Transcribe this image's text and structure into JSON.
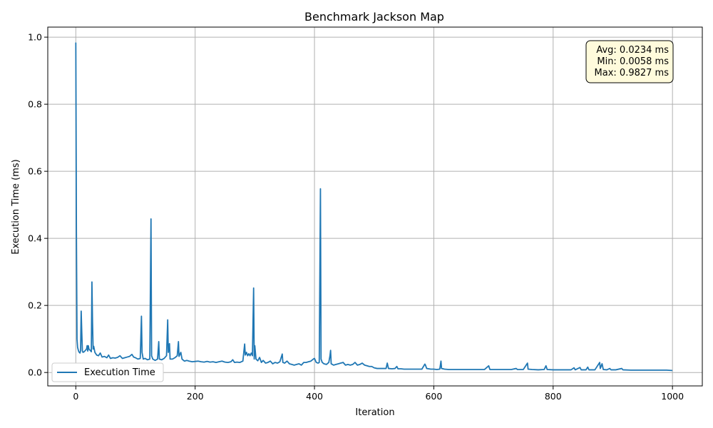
{
  "chart_data": {
    "type": "line",
    "title": "Benchmark Jackson Map",
    "xlabel": "Iteration",
    "ylabel": "Execution Time (ms)",
    "xlim": [
      -47,
      1050
    ],
    "ylim": [
      -0.04,
      1.03
    ],
    "xticks": [
      0,
      200,
      400,
      600,
      800,
      1000
    ],
    "yticks": [
      0.0,
      0.2,
      0.4,
      0.6,
      0.8,
      1.0
    ],
    "xtick_labels": [
      "0",
      "200",
      "400",
      "600",
      "800",
      "1000"
    ],
    "ytick_labels": [
      "0.0",
      "0.2",
      "0.4",
      "0.6",
      "0.8",
      "1.0"
    ],
    "grid": true,
    "legend_position": "bottom-left",
    "line_color": "#1f77b4",
    "series": [
      {
        "name": "Execution Time",
        "points": [
          [
            0,
            0.9827
          ],
          [
            1,
            0.42
          ],
          [
            2,
            0.1
          ],
          [
            3,
            0.075
          ],
          [
            4,
            0.068
          ],
          [
            5,
            0.062
          ],
          [
            6,
            0.06
          ],
          [
            7,
            0.058
          ],
          [
            8,
            0.065
          ],
          [
            9,
            0.183
          ],
          [
            10,
            0.12
          ],
          [
            11,
            0.065
          ],
          [
            12,
            0.06
          ],
          [
            14,
            0.062
          ],
          [
            16,
            0.066
          ],
          [
            18,
            0.07
          ],
          [
            19,
            0.08
          ],
          [
            20,
            0.064
          ],
          [
            21,
            0.08
          ],
          [
            22,
            0.07
          ],
          [
            24,
            0.066
          ],
          [
            26,
            0.062
          ],
          [
            27,
            0.27
          ],
          [
            28,
            0.15
          ],
          [
            29,
            0.07
          ],
          [
            30,
            0.078
          ],
          [
            32,
            0.06
          ],
          [
            35,
            0.052
          ],
          [
            38,
            0.05
          ],
          [
            41,
            0.058
          ],
          [
            44,
            0.046
          ],
          [
            48,
            0.048
          ],
          [
            52,
            0.044
          ],
          [
            55,
            0.052
          ],
          [
            58,
            0.042
          ],
          [
            62,
            0.044
          ],
          [
            66,
            0.043
          ],
          [
            70,
            0.045
          ],
          [
            74,
            0.05
          ],
          [
            78,
            0.042
          ],
          [
            82,
            0.044
          ],
          [
            86,
            0.046
          ],
          [
            90,
            0.048
          ],
          [
            94,
            0.054
          ],
          [
            97,
            0.046
          ],
          [
            100,
            0.044
          ],
          [
            104,
            0.04
          ],
          [
            108,
            0.042
          ],
          [
            110,
            0.168
          ],
          [
            111,
            0.06
          ],
          [
            113,
            0.04
          ],
          [
            116,
            0.042
          ],
          [
            120,
            0.038
          ],
          [
            124,
            0.04
          ],
          [
            126,
            0.458
          ],
          [
            127,
            0.05
          ],
          [
            129,
            0.04
          ],
          [
            133,
            0.036
          ],
          [
            137,
            0.04
          ],
          [
            139,
            0.092
          ],
          [
            140,
            0.04
          ],
          [
            144,
            0.038
          ],
          [
            148,
            0.042
          ],
          [
            152,
            0.05
          ],
          [
            154,
            0.157
          ],
          [
            155,
            0.06
          ],
          [
            157,
            0.086
          ],
          [
            158,
            0.04
          ],
          [
            162,
            0.04
          ],
          [
            166,
            0.044
          ],
          [
            170,
            0.05
          ],
          [
            172,
            0.092
          ],
          [
            173,
            0.048
          ],
          [
            176,
            0.06
          ],
          [
            178,
            0.04
          ],
          [
            182,
            0.034
          ],
          [
            186,
            0.036
          ],
          [
            190,
            0.034
          ],
          [
            195,
            0.032
          ],
          [
            200,
            0.033
          ],
          [
            205,
            0.034
          ],
          [
            210,
            0.032
          ],
          [
            215,
            0.031
          ],
          [
            220,
            0.033
          ],
          [
            225,
            0.031
          ],
          [
            230,
            0.032
          ],
          [
            235,
            0.03
          ],
          [
            240,
            0.032
          ],
          [
            245,
            0.034
          ],
          [
            250,
            0.031
          ],
          [
            255,
            0.03
          ],
          [
            260,
            0.032
          ],
          [
            263,
            0.038
          ],
          [
            266,
            0.03
          ],
          [
            270,
            0.031
          ],
          [
            275,
            0.03
          ],
          [
            280,
            0.034
          ],
          [
            283,
            0.085
          ],
          [
            284,
            0.052
          ],
          [
            286,
            0.06
          ],
          [
            288,
            0.05
          ],
          [
            290,
            0.056
          ],
          [
            292,
            0.05
          ],
          [
            294,
            0.058
          ],
          [
            296,
            0.05
          ],
          [
            298,
            0.252
          ],
          [
            299,
            0.04
          ],
          [
            300,
            0.08
          ],
          [
            302,
            0.04
          ],
          [
            305,
            0.035
          ],
          [
            308,
            0.045
          ],
          [
            311,
            0.03
          ],
          [
            314,
            0.036
          ],
          [
            318,
            0.028
          ],
          [
            322,
            0.03
          ],
          [
            326,
            0.034
          ],
          [
            330,
            0.026
          ],
          [
            334,
            0.03
          ],
          [
            338,
            0.028
          ],
          [
            342,
            0.032
          ],
          [
            346,
            0.055
          ],
          [
            347,
            0.03
          ],
          [
            350,
            0.028
          ],
          [
            354,
            0.034
          ],
          [
            358,
            0.026
          ],
          [
            362,
            0.024
          ],
          [
            366,
            0.022
          ],
          [
            370,
            0.024
          ],
          [
            374,
            0.026
          ],
          [
            378,
            0.022
          ],
          [
            382,
            0.03
          ],
          [
            386,
            0.03
          ],
          [
            390,
            0.032
          ],
          [
            394,
            0.034
          ],
          [
            398,
            0.04
          ],
          [
            400,
            0.042
          ],
          [
            403,
            0.03
          ],
          [
            406,
            0.028
          ],
          [
            408,
            0.03
          ],
          [
            410,
            0.548
          ],
          [
            411,
            0.04
          ],
          [
            413,
            0.03
          ],
          [
            416,
            0.026
          ],
          [
            420,
            0.024
          ],
          [
            424,
            0.03
          ],
          [
            426,
            0.05
          ],
          [
            427,
            0.066
          ],
          [
            428,
            0.026
          ],
          [
            432,
            0.022
          ],
          [
            436,
            0.024
          ],
          [
            440,
            0.026
          ],
          [
            444,
            0.028
          ],
          [
            448,
            0.03
          ],
          [
            452,
            0.022
          ],
          [
            456,
            0.024
          ],
          [
            460,
            0.022
          ],
          [
            464,
            0.024
          ],
          [
            468,
            0.03
          ],
          [
            472,
            0.022
          ],
          [
            476,
            0.024
          ],
          [
            480,
            0.028
          ],
          [
            484,
            0.022
          ],
          [
            488,
            0.02
          ],
          [
            492,
            0.018
          ],
          [
            496,
            0.018
          ],
          [
            500,
            0.014
          ],
          [
            505,
            0.012
          ],
          [
            510,
            0.012
          ],
          [
            515,
            0.012
          ],
          [
            520,
            0.012
          ],
          [
            522,
            0.028
          ],
          [
            524,
            0.012
          ],
          [
            530,
            0.011
          ],
          [
            535,
            0.012
          ],
          [
            538,
            0.018
          ],
          [
            540,
            0.011
          ],
          [
            545,
            0.011
          ],
          [
            550,
            0.01
          ],
          [
            560,
            0.01
          ],
          [
            570,
            0.01
          ],
          [
            580,
            0.01
          ],
          [
            585,
            0.025
          ],
          [
            586,
            0.022
          ],
          [
            588,
            0.012
          ],
          [
            595,
            0.01
          ],
          [
            600,
            0.01
          ],
          [
            605,
            0.009
          ],
          [
            610,
            0.01
          ],
          [
            612,
            0.034
          ],
          [
            613,
            0.012
          ],
          [
            618,
            0.01
          ],
          [
            625,
            0.009
          ],
          [
            635,
            0.009
          ],
          [
            645,
            0.009
          ],
          [
            655,
            0.009
          ],
          [
            665,
            0.009
          ],
          [
            675,
            0.009
          ],
          [
            685,
            0.009
          ],
          [
            692,
            0.02
          ],
          [
            694,
            0.009
          ],
          [
            700,
            0.009
          ],
          [
            710,
            0.009
          ],
          [
            720,
            0.009
          ],
          [
            730,
            0.009
          ],
          [
            738,
            0.012
          ],
          [
            740,
            0.009
          ],
          [
            750,
            0.009
          ],
          [
            757,
            0.028
          ],
          [
            758,
            0.01
          ],
          [
            765,
            0.009
          ],
          [
            775,
            0.008
          ],
          [
            785,
            0.009
          ],
          [
            788,
            0.02
          ],
          [
            790,
            0.009
          ],
          [
            800,
            0.008
          ],
          [
            810,
            0.008
          ],
          [
            820,
            0.008
          ],
          [
            830,
            0.008
          ],
          [
            835,
            0.014
          ],
          [
            837,
            0.008
          ],
          [
            845,
            0.015
          ],
          [
            847,
            0.008
          ],
          [
            855,
            0.008
          ],
          [
            858,
            0.016
          ],
          [
            860,
            0.008
          ],
          [
            870,
            0.008
          ],
          [
            878,
            0.03
          ],
          [
            879,
            0.012
          ],
          [
            882,
            0.026
          ],
          [
            884,
            0.009
          ],
          [
            890,
            0.008
          ],
          [
            895,
            0.012
          ],
          [
            897,
            0.008
          ],
          [
            905,
            0.008
          ],
          [
            915,
            0.012
          ],
          [
            917,
            0.008
          ],
          [
            930,
            0.007
          ],
          [
            940,
            0.007
          ],
          [
            950,
            0.007
          ],
          [
            960,
            0.007
          ],
          [
            970,
            0.007
          ],
          [
            980,
            0.007
          ],
          [
            990,
            0.007
          ],
          [
            999,
            0.006
          ]
        ]
      }
    ],
    "stats_box": {
      "position": "top-right",
      "lines": [
        "Avg: 0.0234 ms",
        "Min: 0.0058 ms",
        "Max: 0.9827 ms"
      ]
    }
  }
}
